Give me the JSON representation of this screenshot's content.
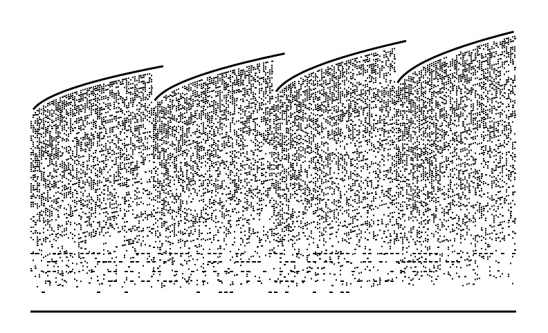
{
  "figure": {
    "background_color": "#ffffff",
    "ink_color": "#000000",
    "text_labels": [],
    "arch_groups": 4,
    "baseline": true
  }
}
